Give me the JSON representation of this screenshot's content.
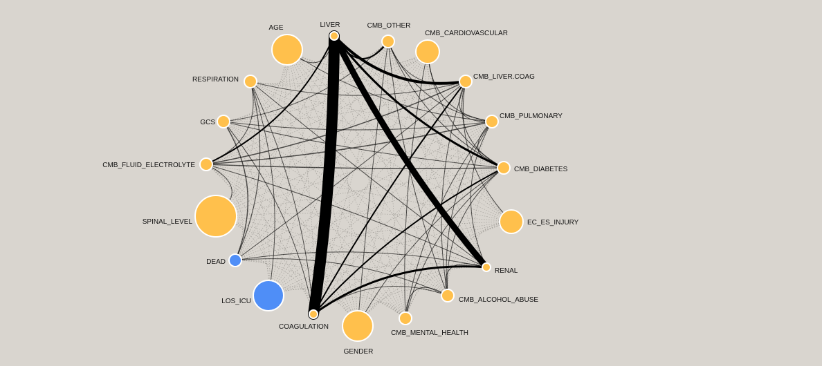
{
  "colors": {
    "background": "#d9d5cf",
    "node_orange": "#ffc04c",
    "node_blue": "#4f8ef7",
    "edge": "#000000"
  },
  "nodes": [
    {
      "id": "LIVER",
      "label": "LIVER",
      "color": "orange",
      "size": "tiny"
    },
    {
      "id": "CMB_OTHER",
      "label": "CMB_OTHER",
      "color": "orange",
      "size": "small"
    },
    {
      "id": "CMB_CARDIOVASCULAR",
      "label": "CMB_CARDIOVASCULAR",
      "color": "orange",
      "size": "medium"
    },
    {
      "id": "CMB_LIVER_COAG",
      "label": "CMB_LIVER.COAG",
      "color": "orange",
      "size": "small"
    },
    {
      "id": "CMB_PULMONARY",
      "label": "CMB_PULMONARY",
      "color": "orange",
      "size": "small"
    },
    {
      "id": "CMB_DIABETES",
      "label": "CMB_DIABETES",
      "color": "orange",
      "size": "small"
    },
    {
      "id": "EC_ES_INJURY",
      "label": "EC_ES_INJURY",
      "color": "orange",
      "size": "medium"
    },
    {
      "id": "RENAL",
      "label": "RENAL",
      "color": "orange",
      "size": "tiny"
    },
    {
      "id": "CMB_ALCOHOL_ABUSE",
      "label": "CMB_ALCOHOL_ABUSE",
      "color": "orange",
      "size": "small"
    },
    {
      "id": "CMB_MENTAL_HEALTH",
      "label": "CMB_MENTAL_HEALTH",
      "color": "orange",
      "size": "small"
    },
    {
      "id": "GENDER",
      "label": "GENDER",
      "color": "orange",
      "size": "large"
    },
    {
      "id": "COAGULATION",
      "label": "COAGULATION",
      "color": "orange",
      "size": "tiny"
    },
    {
      "id": "LOS_ICU",
      "label": "LOS_ICU",
      "color": "blue",
      "size": "large"
    },
    {
      "id": "DEAD",
      "label": "DEAD",
      "color": "blue",
      "size": "small"
    },
    {
      "id": "SPINAL_LEVEL",
      "label": "SPINAL_LEVEL",
      "color": "orange",
      "size": "xlarge"
    },
    {
      "id": "CMB_FLUID_ELECTROLYTE",
      "label": "CMB_FLUID_ELECTROLYTE",
      "color": "orange",
      "size": "small"
    },
    {
      "id": "GCS",
      "label": "GCS",
      "color": "orange",
      "size": "small"
    },
    {
      "id": "RESPIRATION",
      "label": "RESPIRATION",
      "color": "orange",
      "size": "small"
    },
    {
      "id": "AGE",
      "label": "AGE",
      "color": "orange",
      "size": "large"
    }
  ],
  "edges": [
    {
      "source": "LIVER",
      "target": "COAGULATION",
      "weight": 16
    },
    {
      "source": "LIVER",
      "target": "RENAL",
      "weight": 9
    },
    {
      "source": "LIVER",
      "target": "CMB_LIVER_COAG",
      "weight": 4
    },
    {
      "source": "LIVER",
      "target": "CMB_DIABETES",
      "weight": 3
    },
    {
      "source": "LIVER",
      "target": "CMB_OTHER",
      "weight": 2
    },
    {
      "source": "LIVER",
      "target": "CMB_FLUID_ELECTROLYTE",
      "weight": 2
    },
    {
      "source": "COAGULATION",
      "target": "RENAL",
      "weight": 3
    },
    {
      "source": "COAGULATION",
      "target": "CMB_LIVER_COAG",
      "weight": 2
    },
    {
      "source": "COAGULATION",
      "target": "CMB_DIABETES",
      "weight": 2
    },
    {
      "source": "COAGULATION",
      "target": "GCS",
      "weight": 1
    },
    {
      "source": "CMB_FLUID_ELECTROLYTE",
      "target": "CMB_DIABETES",
      "weight": 1.5
    },
    {
      "source": "CMB_FLUID_ELECTROLYTE",
      "target": "CMB_PULMONARY",
      "weight": 1.5
    },
    {
      "source": "CMB_FLUID_ELECTROLYTE",
      "target": "CMB_LIVER_COAG",
      "weight": 1.5
    },
    {
      "source": "CMB_FLUID_ELECTROLYTE",
      "target": "RESPIRATION",
      "weight": 1
    },
    {
      "source": "CMB_FLUID_ELECTROLYTE",
      "target": "RENAL",
      "weight": 1
    },
    {
      "source": "DEAD",
      "target": "RESPIRATION",
      "weight": 1.2
    },
    {
      "source": "DEAD",
      "target": "GCS",
      "weight": 1.5
    },
    {
      "source": "DEAD",
      "target": "RENAL",
      "weight": 1
    },
    {
      "source": "DEAD",
      "target": "CMB_ALCOHOL_ABUSE",
      "weight": 1
    },
    {
      "source": "DEAD",
      "target": "CMB_LIVER_COAG",
      "weight": 1
    },
    {
      "source": "GCS",
      "target": "CMB_PULMONARY",
      "weight": 1
    },
    {
      "source": "GCS",
      "target": "CMB_DIABETES",
      "weight": 1
    },
    {
      "source": "GCS",
      "target": "CMB_OTHER",
      "weight": 1
    },
    {
      "source": "RESPIRATION",
      "target": "CMB_LIVER_COAG",
      "weight": 1
    },
    {
      "source": "RESPIRATION",
      "target": "RENAL",
      "weight": 1
    },
    {
      "source": "RESPIRATION",
      "target": "COAGULATION",
      "weight": 1
    },
    {
      "source": "CMB_OTHER",
      "target": "CMB_DIABETES",
      "weight": 1
    },
    {
      "source": "CMB_OTHER",
      "target": "CMB_PULMONARY",
      "weight": 1
    },
    {
      "source": "CMB_OTHER",
      "target": "CMB_LIVER_COAG",
      "weight": 1
    },
    {
      "source": "CMB_OTHER",
      "target": "CMB_ALCOHOL_ABUSE",
      "weight": 1
    },
    {
      "source": "CMB_CARDIOVASCULAR",
      "target": "CMB_PULMONARY",
      "weight": 1
    },
    {
      "source": "CMB_CARDIOVASCULAR",
      "target": "CMB_DIABETES",
      "weight": 1
    },
    {
      "source": "CMB_CARDIOVASCULAR",
      "target": "CMB_MENTAL_HEALTH",
      "weight": 1
    },
    {
      "source": "CMB_LIVER_COAG",
      "target": "CMB_PULMONARY",
      "weight": 1
    },
    {
      "source": "CMB_LIVER_COAG",
      "target": "CMB_DIABETES",
      "weight": 1
    },
    {
      "source": "CMB_LIVER_COAG",
      "target": "CMB_ALCOHOL_ABUSE",
      "weight": 1
    },
    {
      "source": "CMB_PULMONARY",
      "target": "CMB_DIABETES",
      "weight": 1
    },
    {
      "source": "CMB_PULMONARY",
      "target": "CMB_ALCOHOL_ABUSE",
      "weight": 1
    },
    {
      "source": "CMB_PULMONARY",
      "target": "CMB_MENTAL_HEALTH",
      "weight": 1
    },
    {
      "source": "CMB_DIABETES",
      "target": "CMB_ALCOHOL_ABUSE",
      "weight": 1
    },
    {
      "source": "CMB_DIABETES",
      "target": "CMB_MENTAL_HEALTH",
      "weight": 1
    },
    {
      "source": "RENAL",
      "target": "CMB_ALCOHOL_ABUSE",
      "weight": 1
    },
    {
      "source": "RENAL",
      "target": "CMB_PULMONARY",
      "weight": 1
    },
    {
      "source": "AGE",
      "target": "CMB_PULMONARY",
      "weight": 1
    },
    {
      "source": "AGE",
      "target": "LIVER",
      "weight": 1
    },
    {
      "source": "SPINAL_LEVEL",
      "target": "CMB_FLUID_ELECTROLYTE",
      "weight": 1
    },
    {
      "source": "LOS_ICU",
      "target": "RESPIRATION",
      "weight": 1
    },
    {
      "source": "GENDER",
      "target": "CMB_DIABETES",
      "weight": 1
    },
    {
      "source": "GENDER",
      "target": "CMB_OTHER",
      "weight": 1
    },
    {
      "source": "EC_ES_INJURY",
      "target": "CMB_LIVER_COAG",
      "weight": 1
    },
    {
      "source": "CMB_ALCOHOL_ABUSE",
      "target": "CMB_MENTAL_HEALTH",
      "weight": 1
    },
    {
      "source": "CMB_ALCOHOL_ABUSE",
      "target": "COAGULATION",
      "weight": 1
    }
  ]
}
